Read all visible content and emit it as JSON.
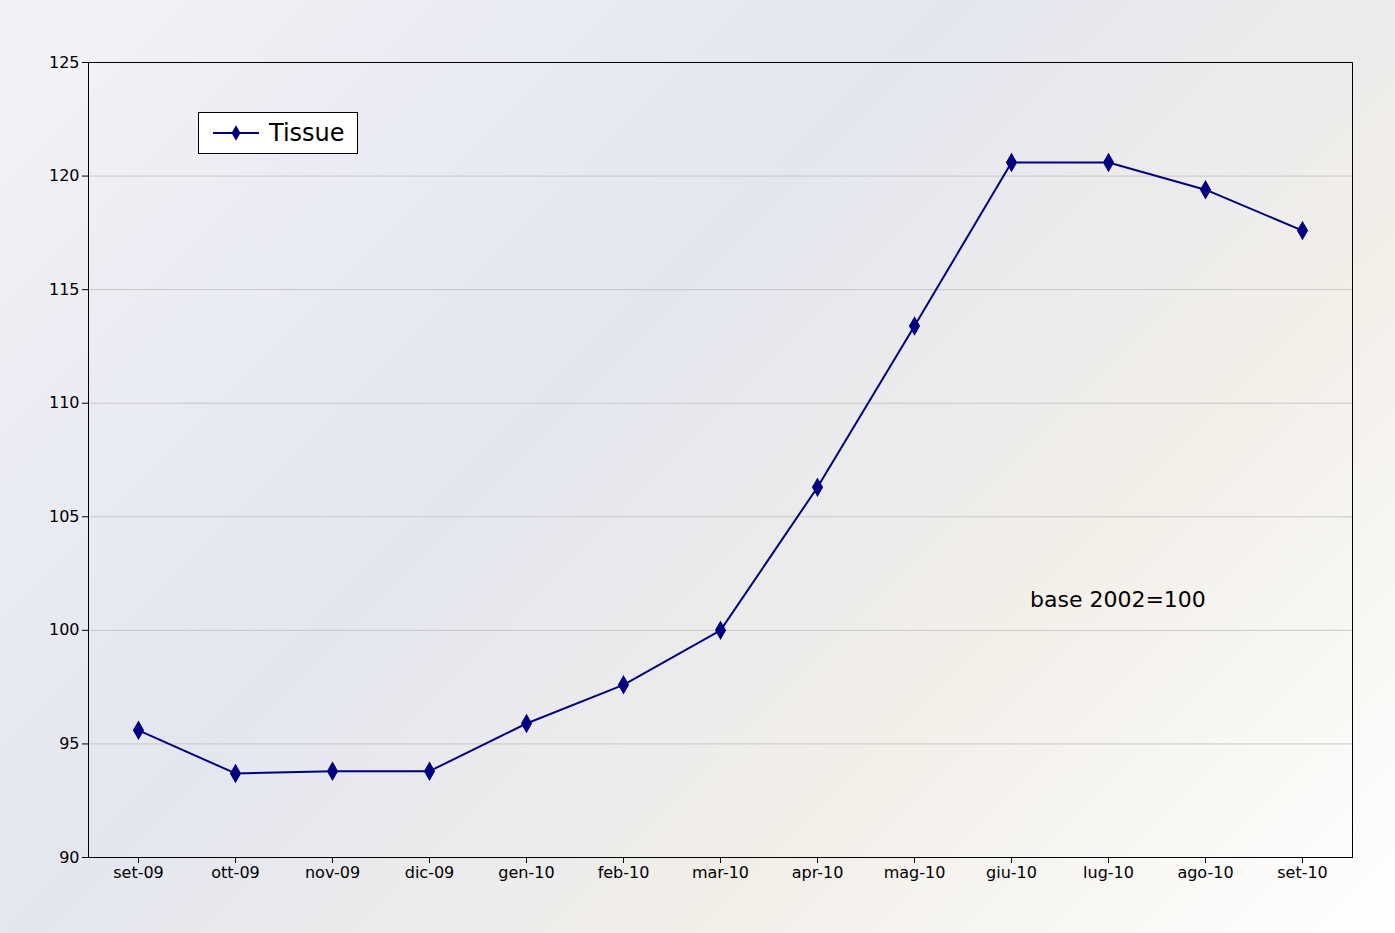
{
  "chart_data": {
    "type": "line",
    "categories": [
      "set-09",
      "ott-09",
      "nov-09",
      "dic-09",
      "gen-10",
      "feb-10",
      "mar-10",
      "apr-10",
      "mag-10",
      "giu-10",
      "lug-10",
      "ago-10",
      "set-10"
    ],
    "series": [
      {
        "name": "Tissue",
        "color": "#000080",
        "marker": "diamond",
        "line_style": "solid",
        "values": [
          95.6,
          93.7,
          93.8,
          93.8,
          95.9,
          97.6,
          100.0,
          106.3,
          113.4,
          120.6,
          120.6,
          119.4,
          117.6
        ]
      }
    ],
    "ylim": [
      90,
      125
    ],
    "yticks": [
      90,
      95,
      100,
      105,
      110,
      115,
      120,
      125
    ],
    "grid": true,
    "legend": "upper left",
    "annotations": [
      "base 2002=100"
    ]
  }
}
